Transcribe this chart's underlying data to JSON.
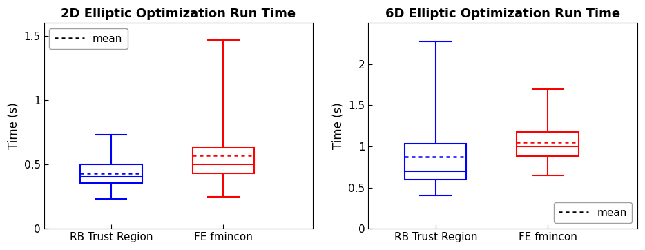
{
  "plot2d": {
    "title": "2D Elliptic Optimization Run Time",
    "ylabel": "Time (s)",
    "ylim": [
      0,
      1.6
    ],
    "yticks": [
      0,
      0.5,
      1.0,
      1.5
    ],
    "yticklabels": [
      "0",
      "0.5",
      "1",
      "1.5"
    ],
    "xtick_labels": [
      "RB Trust Region",
      "FE fmincon"
    ],
    "boxes": [
      {
        "color": "#0000ff",
        "q1": 0.355,
        "median": 0.405,
        "q3": 0.5,
        "mean": 0.43,
        "whisker_low": 0.23,
        "whisker_high": 0.73
      },
      {
        "color": "#ff0000",
        "q1": 0.43,
        "median": 0.5,
        "q3": 0.63,
        "mean": 0.57,
        "whisker_low": 0.25,
        "whisker_high": 1.47
      }
    ],
    "legend_loc": "upper left",
    "positions": [
      1,
      2
    ],
    "xlim": [
      0.4,
      2.8
    ]
  },
  "plot6d": {
    "title": "6D Elliptic Optimization Run Time",
    "ylabel": "Time (s)",
    "ylim": [
      0,
      2.5
    ],
    "yticks": [
      0,
      0.5,
      1.0,
      1.5,
      2.0
    ],
    "yticklabels": [
      "0",
      "0.5",
      "1",
      "1.5",
      "2"
    ],
    "xtick_labels": [
      "RB Trust Region",
      "FE fmincon"
    ],
    "boxes": [
      {
        "color": "#0000ff",
        "q1": 0.595,
        "median": 0.7,
        "q3": 1.035,
        "mean": 0.87,
        "whisker_low": 0.4,
        "whisker_high": 2.28
      },
      {
        "color": "#ff0000",
        "q1": 0.88,
        "median": 1.0,
        "q3": 1.175,
        "mean": 1.05,
        "whisker_low": 0.65,
        "whisker_high": 1.7
      }
    ],
    "legend_loc": "lower right",
    "positions": [
      1,
      2
    ],
    "xlim": [
      0.4,
      2.8
    ]
  },
  "box_width": 0.55,
  "linewidth": 1.5,
  "mean_linewidth": 1.8,
  "cap_ratio": 0.5,
  "background_color": "#ffffff",
  "title_fontsize": 13,
  "label_fontsize": 12,
  "tick_fontsize": 11
}
